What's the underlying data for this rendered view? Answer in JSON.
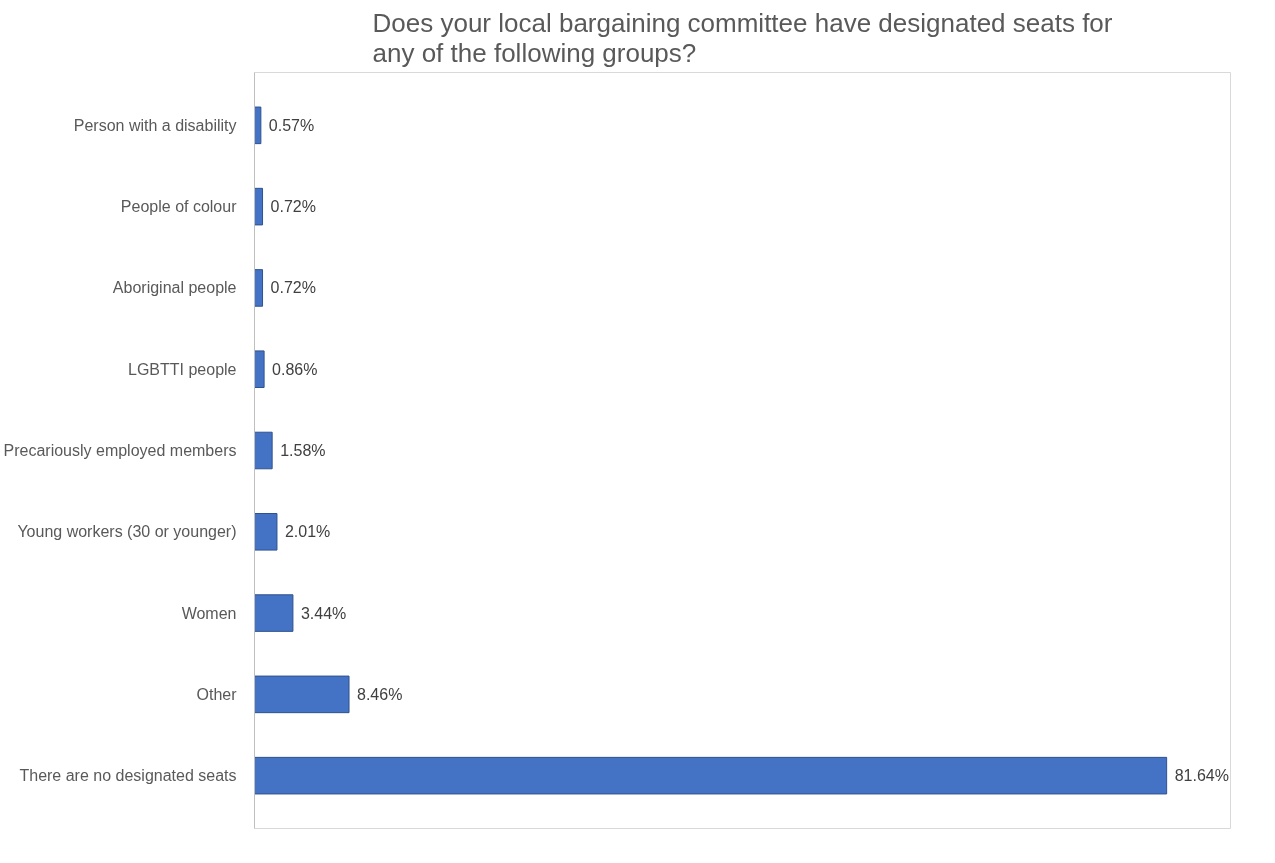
{
  "chart_data": {
    "type": "bar",
    "orientation": "horizontal",
    "title": "Does your local bargaining committee have designated seats for\nany of the following groups?",
    "categories": [
      "Person with a disability",
      "People of colour",
      "Aboriginal people",
      "LGBTTI people",
      "Precariously employed members",
      "Young workers (30 or younger)",
      "Women",
      "Other",
      "There are no designated seats"
    ],
    "values": [
      0.57,
      0.72,
      0.72,
      0.86,
      1.58,
      2.01,
      3.44,
      8.46,
      81.64
    ],
    "value_labels": [
      "0.57%",
      "0.72%",
      "0.72%",
      "0.86%",
      "1.58%",
      "2.01%",
      "3.44%",
      "8.46%",
      "81.64%"
    ],
    "color": "#4472c4",
    "grid": false
  }
}
